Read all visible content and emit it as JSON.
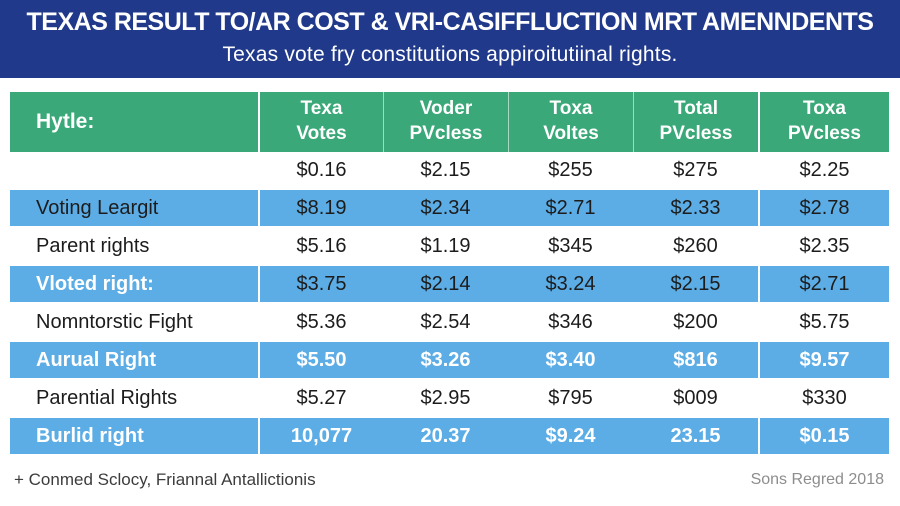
{
  "colors": {
    "banner_bg": "#20398a",
    "header_bg": "#3aa878",
    "row_blue": "#5cade5",
    "text_dark": "#1c1c1c",
    "text_white": "#ffffff",
    "footer_left": "#3c3c3c",
    "footer_right": "#8d8d8d"
  },
  "banner": {
    "title": "TEXAS RESULT TO/AR COST & VRI-CASIFFLUCTION MRT AMENNDENTS",
    "subtitle": "Texas vote fry constitutions appiroitutiinal rights."
  },
  "chart_data": {
    "type": "table",
    "title": "TEXAS RESULT TO/AR COST & VRI-CASIFFLUCTION MRT AMENNDENTS",
    "subtitle": "Texas vote fry constitutions appiroitutiinal rights.",
    "columns": [
      "Hytle:",
      "Texa\nVotes",
      "Voder\nPVcless",
      "Toxa\nVoltes",
      "Total\nPVcless",
      "Toxa\nPVcless"
    ],
    "rows": [
      {
        "label": "",
        "values": [
          "$0.16",
          "$2.15",
          "$255",
          "$275",
          "$2.25"
        ],
        "bg": "white",
        "label_color": "dark",
        "value_color": "dark"
      },
      {
        "label": "Voting Leargit",
        "values": [
          "$8.19",
          "$2.34",
          "$2.71",
          "$2.33",
          "$2.78"
        ],
        "bg": "blue",
        "label_color": "dark",
        "value_color": "dark"
      },
      {
        "label": "Parent rights",
        "values": [
          "$5.16",
          "$1.19",
          "$345",
          "$260",
          "$2.35"
        ],
        "bg": "white",
        "label_color": "dark",
        "value_color": "dark"
      },
      {
        "label": "Vloted right:",
        "values": [
          "$3.75",
          "$2.14",
          "$3.24",
          "$2.15",
          "$2.71"
        ],
        "bg": "blue",
        "label_color": "white",
        "value_color": "dark"
      },
      {
        "label": "Nomntorstic Fight",
        "values": [
          "$5.36",
          "$2.54",
          "$346",
          "$200",
          "$5.75"
        ],
        "bg": "white",
        "label_color": "dark",
        "value_color": "dark"
      },
      {
        "label": "Aurual Right",
        "values": [
          "$5.50",
          "$3.26",
          "$3.40",
          "$816",
          "$9.57"
        ],
        "bg": "blue",
        "label_color": "white",
        "value_color": "white"
      },
      {
        "label": "Parential Rights",
        "values": [
          "$5.27",
          "$2.95",
          "$795",
          "$009",
          "$330"
        ],
        "bg": "white",
        "label_color": "dark",
        "value_color": "dark"
      },
      {
        "label": "Burlid right",
        "values": [
          "10,077",
          "20.37",
          "$9.24",
          "23.15",
          "$0.15"
        ],
        "bg": "blue",
        "label_color": "white",
        "value_color": "white"
      }
    ]
  },
  "footer": {
    "source": "+ Conmed Sclocy, Friannal Antallictionis",
    "credit": "Sons Regred 2018"
  }
}
